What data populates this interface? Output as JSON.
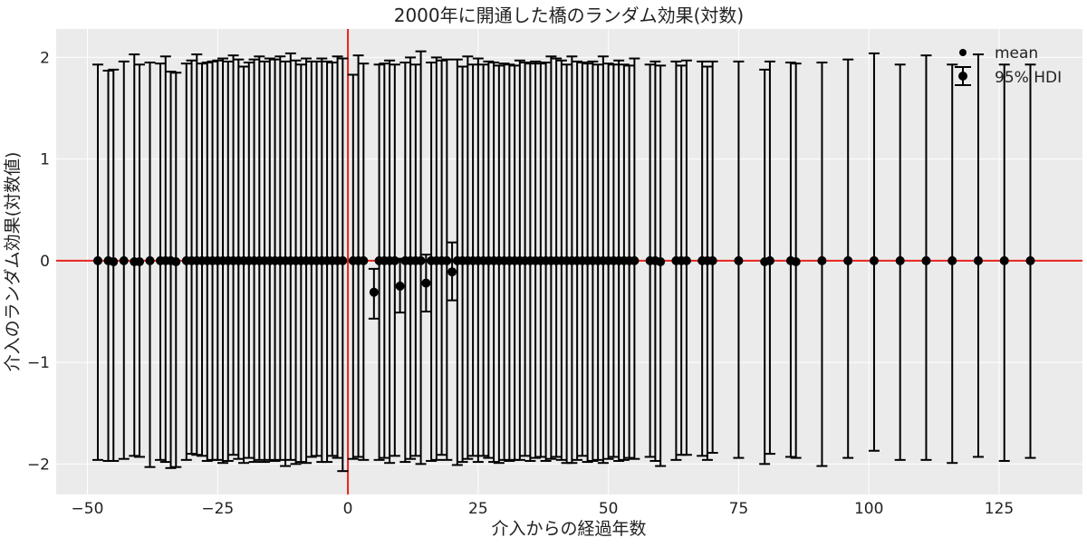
{
  "chart_data": {
    "type": "scatter",
    "title": "2000年に開通した橋のランダム効果(対数)",
    "xlabel": "介入からの経過年数",
    "ylabel": "介入のランダム効果(対数値)",
    "xlim": [
      -56,
      141
    ],
    "ylim": [
      -2.3,
      2.28
    ],
    "xticks": [
      {
        "value": -50,
        "label": "−50"
      },
      {
        "value": -25,
        "label": "−25"
      },
      {
        "value": 0,
        "label": "0"
      },
      {
        "value": 25,
        "label": "25"
      },
      {
        "value": 50,
        "label": "50"
      },
      {
        "value": 75,
        "label": "75"
      },
      {
        "value": 100,
        "label": "100"
      },
      {
        "value": 125,
        "label": "125"
      }
    ],
    "yticks": [
      {
        "value": -2,
        "label": "−2"
      },
      {
        "value": -1,
        "label": "−1"
      },
      {
        "value": 0,
        "label": "0"
      },
      {
        "value": 1,
        "label": "1"
      },
      {
        "value": 2,
        "label": "2"
      }
    ],
    "grid": true,
    "legend_position": "top-right",
    "legend": [
      {
        "label": "mean",
        "kind": "point"
      },
      {
        "label": "95% HDI",
        "kind": "errorbar"
      }
    ],
    "reference_lines": [
      {
        "axis": "x",
        "value": 0,
        "color": "#e8241c"
      },
      {
        "axis": "y",
        "value": 0,
        "color": "#e8241c"
      }
    ],
    "colors": {
      "background": "#ebebeb",
      "grid": "#ffffff",
      "points": "#000000",
      "reference": "#e8241c"
    },
    "series": [
      {
        "name": "mean",
        "points": [
          {
            "x": -48,
            "mean": 0.0,
            "lo": -1.96,
            "hi": 1.93
          },
          {
            "x": -46,
            "mean": 0.0,
            "lo": -1.97,
            "hi": 1.87
          },
          {
            "x": -45,
            "mean": -0.01,
            "lo": -1.97,
            "hi": 1.88
          },
          {
            "x": -43,
            "mean": 0.0,
            "lo": -1.95,
            "hi": 1.96
          },
          {
            "x": -41,
            "mean": -0.01,
            "lo": -1.92,
            "hi": 2.03
          },
          {
            "x": -40,
            "mean": -0.01,
            "lo": -1.93,
            "hi": 1.93
          },
          {
            "x": -38,
            "mean": 0.0,
            "lo": -2.03,
            "hi": 1.95
          },
          {
            "x": -36,
            "mean": 0.0,
            "lo": -1.96,
            "hi": 1.94
          },
          {
            "x": -35,
            "mean": 0.0,
            "lo": -1.98,
            "hi": 2.01
          },
          {
            "x": -34,
            "mean": 0.0,
            "lo": -2.04,
            "hi": 1.86
          },
          {
            "x": -33,
            "mean": -0.01,
            "lo": -2.03,
            "hi": 1.85
          },
          {
            "x": -31,
            "mean": 0.0,
            "lo": -1.96,
            "hi": 1.94
          },
          {
            "x": -30,
            "mean": 0.0,
            "lo": -1.9,
            "hi": 1.97
          },
          {
            "x": -29,
            "mean": 0.0,
            "lo": -1.91,
            "hi": 2.03
          },
          {
            "x": -28,
            "mean": 0.0,
            "lo": -1.92,
            "hi": 1.94
          },
          {
            "x": -27,
            "mean": 0.0,
            "lo": -1.97,
            "hi": 1.95
          },
          {
            "x": -26,
            "mean": 0.0,
            "lo": -1.96,
            "hi": 1.96
          },
          {
            "x": -25,
            "mean": 0.0,
            "lo": -1.96,
            "hi": 1.97
          },
          {
            "x": -24,
            "mean": 0.0,
            "lo": -1.99,
            "hi": 1.99
          },
          {
            "x": -23,
            "mean": 0.0,
            "lo": -1.97,
            "hi": 1.96
          },
          {
            "x": -22,
            "mean": 0.0,
            "lo": -1.91,
            "hi": 2.02
          },
          {
            "x": -21,
            "mean": 0.0,
            "lo": -1.95,
            "hi": 1.98
          },
          {
            "x": -20,
            "mean": 0.0,
            "lo": -1.99,
            "hi": 1.91
          },
          {
            "x": -19,
            "mean": 0.0,
            "lo": -1.94,
            "hi": 1.95
          },
          {
            "x": -18,
            "mean": 0.0,
            "lo": -1.98,
            "hi": 1.98
          },
          {
            "x": -17,
            "mean": 0.0,
            "lo": -1.96,
            "hi": 2.01
          },
          {
            "x": -16,
            "mean": 0.0,
            "lo": -1.98,
            "hi": 1.96
          },
          {
            "x": -15,
            "mean": 0.0,
            "lo": -1.96,
            "hi": 1.99
          },
          {
            "x": -14,
            "mean": 0.0,
            "lo": -1.97,
            "hi": 1.98
          },
          {
            "x": -13,
            "mean": 0.0,
            "lo": -1.96,
            "hi": 2.01
          },
          {
            "x": -12,
            "mean": 0.0,
            "lo": -2.02,
            "hi": 1.96
          },
          {
            "x": -11,
            "mean": 0.0,
            "lo": -1.96,
            "hi": 2.04
          },
          {
            "x": -10,
            "mean": 0.0,
            "lo": -2.0,
            "hi": 1.97
          },
          {
            "x": -9,
            "mean": 0.0,
            "lo": -1.98,
            "hi": 1.93
          },
          {
            "x": -8,
            "mean": 0.0,
            "lo": -1.99,
            "hi": 1.99
          },
          {
            "x": -7,
            "mean": 0.0,
            "lo": -1.93,
            "hi": 1.96
          },
          {
            "x": -6,
            "mean": 0.0,
            "lo": -1.92,
            "hi": 1.96
          },
          {
            "x": -5,
            "mean": 0.0,
            "lo": -1.98,
            "hi": 1.99
          },
          {
            "x": -4,
            "mean": 0.0,
            "lo": -1.98,
            "hi": 1.96
          },
          {
            "x": -3,
            "mean": 0.0,
            "lo": -1.92,
            "hi": 1.95
          },
          {
            "x": -2,
            "mean": 0.0,
            "lo": -1.94,
            "hi": 2.01
          },
          {
            "x": -1,
            "mean": 0.0,
            "lo": -2.07,
            "hi": 1.99
          },
          {
            "x": 1,
            "mean": 0.0,
            "lo": -1.95,
            "hi": 1.83
          },
          {
            "x": 2,
            "mean": 0.0,
            "lo": -1.93,
            "hi": 2.02
          },
          {
            "x": 3,
            "mean": 0.0,
            "lo": -1.96,
            "hi": 1.94
          },
          {
            "x": 5,
            "mean": -0.31,
            "lo": -0.57,
            "hi": -0.08
          },
          {
            "x": 6,
            "mean": 0.0,
            "lo": -1.96,
            "hi": 1.93
          },
          {
            "x": 7,
            "mean": 0.0,
            "lo": -1.94,
            "hi": 1.94
          },
          {
            "x": 8,
            "mean": 0.0,
            "lo": -1.99,
            "hi": 1.97
          },
          {
            "x": 9,
            "mean": 0.0,
            "lo": -1.92,
            "hi": 1.93
          },
          {
            "x": 10,
            "mean": -0.25,
            "lo": -0.51,
            "hi": 0.02
          },
          {
            "x": 11,
            "mean": 0.0,
            "lo": -1.98,
            "hi": 1.95
          },
          {
            "x": 12,
            "mean": 0.0,
            "lo": -1.95,
            "hi": 2.0
          },
          {
            "x": 13,
            "mean": 0.0,
            "lo": -1.92,
            "hi": 1.93
          },
          {
            "x": 14,
            "mean": 0.0,
            "lo": -2.0,
            "hi": 2.06
          },
          {
            "x": 15,
            "mean": -0.22,
            "lo": -0.5,
            "hi": 0.06
          },
          {
            "x": 16,
            "mean": 0.0,
            "lo": -1.97,
            "hi": 1.95
          },
          {
            "x": 17,
            "mean": 0.0,
            "lo": -1.96,
            "hi": 2.0
          },
          {
            "x": 18,
            "mean": 0.0,
            "lo": -1.91,
            "hi": 1.97
          },
          {
            "x": 19,
            "mean": 0.0,
            "lo": -1.96,
            "hi": 1.98
          },
          {
            "x": 20,
            "mean": -0.11,
            "lo": -0.39,
            "hi": 0.18
          },
          {
            "x": 21,
            "mean": 0.0,
            "lo": -2.01,
            "hi": 1.98
          },
          {
            "x": 22,
            "mean": 0.0,
            "lo": -1.98,
            "hi": 1.91
          },
          {
            "x": 23,
            "mean": 0.0,
            "lo": -1.95,
            "hi": 2.01
          },
          {
            "x": 24,
            "mean": 0.0,
            "lo": -1.92,
            "hi": 1.93
          },
          {
            "x": 25,
            "mean": 0.0,
            "lo": -1.98,
            "hi": 1.99
          },
          {
            "x": 26,
            "mean": 0.0,
            "lo": -1.92,
            "hi": 1.93
          },
          {
            "x": 27,
            "mean": 0.0,
            "lo": -1.94,
            "hi": 1.96
          },
          {
            "x": 28,
            "mean": 0.0,
            "lo": -1.98,
            "hi": 1.95
          },
          {
            "x": 29,
            "mean": 0.0,
            "lo": -1.99,
            "hi": 1.92
          },
          {
            "x": 30,
            "mean": 0.0,
            "lo": -1.96,
            "hi": 1.94
          },
          {
            "x": 31,
            "mean": 0.0,
            "lo": -1.97,
            "hi": 1.93
          },
          {
            "x": 32,
            "mean": 0.0,
            "lo": -1.96,
            "hi": 1.92
          },
          {
            "x": 33,
            "mean": 0.0,
            "lo": -1.96,
            "hi": 1.97
          },
          {
            "x": 34,
            "mean": 0.0,
            "lo": -1.92,
            "hi": 1.95
          },
          {
            "x": 35,
            "mean": 0.0,
            "lo": -1.97,
            "hi": 1.94
          },
          {
            "x": 36,
            "mean": 0.0,
            "lo": -1.94,
            "hi": 1.96
          },
          {
            "x": 37,
            "mean": 0.0,
            "lo": -1.93,
            "hi": 1.94
          },
          {
            "x": 38,
            "mean": 0.0,
            "lo": -1.97,
            "hi": 1.95
          },
          {
            "x": 39,
            "mean": 0.0,
            "lo": -1.95,
            "hi": 2.01
          },
          {
            "x": 40,
            "mean": 0.0,
            "lo": -1.93,
            "hi": 1.99
          },
          {
            "x": 41,
            "mean": 0.0,
            "lo": -1.96,
            "hi": 1.97
          },
          {
            "x": 42,
            "mean": 0.0,
            "lo": -1.99,
            "hi": 1.93
          },
          {
            "x": 43,
            "mean": 0.0,
            "lo": -1.99,
            "hi": 2.01
          },
          {
            "x": 44,
            "mean": 0.0,
            "lo": -1.96,
            "hi": 1.96
          },
          {
            "x": 45,
            "mean": 0.0,
            "lo": -1.92,
            "hi": 1.95
          },
          {
            "x": 46,
            "mean": 0.0,
            "lo": -1.98,
            "hi": 1.94
          },
          {
            "x": 47,
            "mean": 0.0,
            "lo": -1.97,
            "hi": 1.96
          },
          {
            "x": 48,
            "mean": 0.0,
            "lo": -1.96,
            "hi": 1.93
          },
          {
            "x": 49,
            "mean": 0.0,
            "lo": -1.99,
            "hi": 2.01
          },
          {
            "x": 50,
            "mean": 0.0,
            "lo": -1.95,
            "hi": 1.94
          },
          {
            "x": 51,
            "mean": 0.0,
            "lo": -1.93,
            "hi": 1.93
          },
          {
            "x": 52,
            "mean": 0.0,
            "lo": -1.97,
            "hi": 1.97
          },
          {
            "x": 53,
            "mean": 0.0,
            "lo": -1.96,
            "hi": 1.93
          },
          {
            "x": 54,
            "mean": 0.0,
            "lo": -1.94,
            "hi": 1.92
          },
          {
            "x": 55,
            "mean": 0.0,
            "lo": -1.95,
            "hi": 1.99
          },
          {
            "x": 58,
            "mean": 0.0,
            "lo": -1.93,
            "hi": 1.93
          },
          {
            "x": 59,
            "mean": 0.0,
            "lo": -1.97,
            "hi": 1.96
          },
          {
            "x": 60,
            "mean": -0.01,
            "lo": -2.02,
            "hi": 1.92
          },
          {
            "x": 63,
            "mean": 0.0,
            "lo": -1.96,
            "hi": 1.96
          },
          {
            "x": 64,
            "mean": 0.0,
            "lo": -1.91,
            "hi": 1.92
          },
          {
            "x": 65,
            "mean": 0.0,
            "lo": -1.91,
            "hi": 1.97
          },
          {
            "x": 68,
            "mean": 0.0,
            "lo": -1.92,
            "hi": 1.96
          },
          {
            "x": 69,
            "mean": 0.0,
            "lo": -1.96,
            "hi": 1.91
          },
          {
            "x": 70,
            "mean": 0.0,
            "lo": -1.89,
            "hi": 1.96
          },
          {
            "x": 75,
            "mean": 0.0,
            "lo": -1.94,
            "hi": 1.96
          },
          {
            "x": 80,
            "mean": -0.01,
            "lo": -2.0,
            "hi": 1.88
          },
          {
            "x": 81,
            "mean": 0.0,
            "lo": -1.9,
            "hi": 1.96
          },
          {
            "x": 85,
            "mean": 0.0,
            "lo": -1.93,
            "hi": 1.95
          },
          {
            "x": 86,
            "mean": -0.01,
            "lo": -1.94,
            "hi": 1.94
          },
          {
            "x": 91,
            "mean": 0.0,
            "lo": -2.02,
            "hi": 1.95
          },
          {
            "x": 96,
            "mean": 0.0,
            "lo": -1.94,
            "hi": 1.98
          },
          {
            "x": 101,
            "mean": 0.0,
            "lo": -1.87,
            "hi": 2.04
          },
          {
            "x": 106,
            "mean": 0.0,
            "lo": -1.96,
            "hi": 1.93
          },
          {
            "x": 111,
            "mean": 0.0,
            "lo": -1.96,
            "hi": 2.02
          },
          {
            "x": 116,
            "mean": 0.0,
            "lo": -1.99,
            "hi": 1.93
          },
          {
            "x": 121,
            "mean": 0.0,
            "lo": -1.93,
            "hi": 2.03
          },
          {
            "x": 126,
            "mean": 0.0,
            "lo": -1.97,
            "hi": 1.93
          },
          {
            "x": 131,
            "mean": 0.0,
            "lo": -1.94,
            "hi": 1.93
          }
        ]
      }
    ]
  }
}
